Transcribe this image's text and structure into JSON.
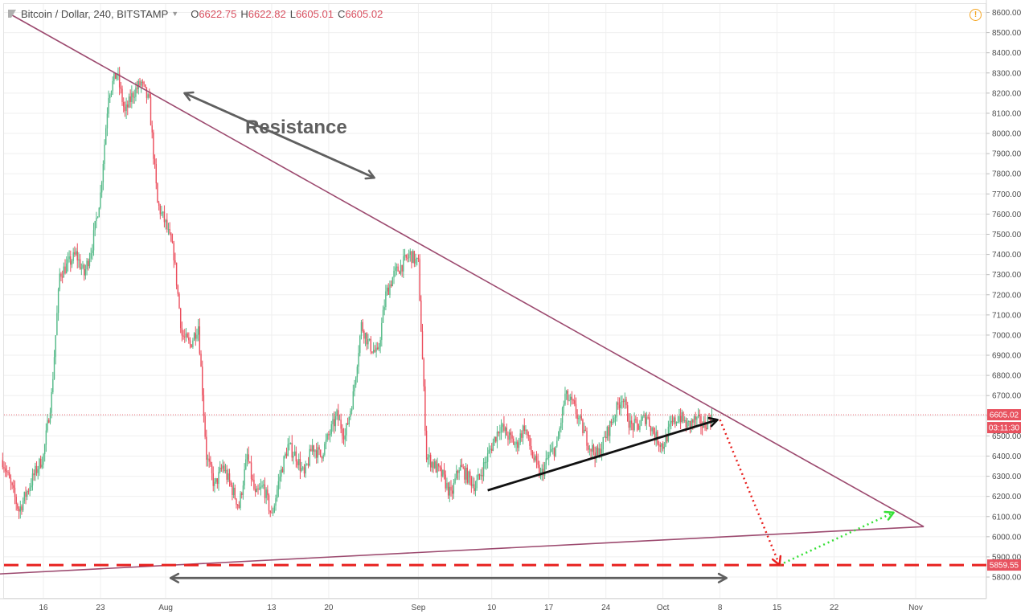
{
  "header": {
    "symbol": "Bitcoin / Dollar, 240, BITSTAMP",
    "o_label": "O",
    "o": "6622.75",
    "h_label": "H",
    "h": "6622.82",
    "l_label": "L",
    "l": "6605.01",
    "c_label": "C",
    "c": "6605.02",
    "alert_icon": "!"
  },
  "colors": {
    "up": "#53b987",
    "down": "#eb4d5c",
    "trend": "#9c4a6f",
    "support": "#e8201e",
    "arrow": "#5f5f5f",
    "price_tag": "#e8525f",
    "green_path": "#35e035"
  },
  "chart_data": {
    "type": "candlestick",
    "title": "",
    "ylim": [
      5760,
      8620
    ],
    "y_ticks": [
      "8600.00",
      "8500.00",
      "8400.00",
      "8300.00",
      "8200.00",
      "8100.00",
      "8000.00",
      "7900.00",
      "7800.00",
      "7700.00",
      "7600.00",
      "7500.00",
      "7400.00",
      "7300.00",
      "7200.00",
      "7100.00",
      "7000.00",
      "6900.00",
      "6800.00",
      "6700.00",
      "6600.00",
      "6500.00",
      "6400.00",
      "6300.00",
      "6200.00",
      "6100.00",
      "6000.00",
      "5900.00",
      "5800.00"
    ],
    "x_ticks": [
      "16",
      "23",
      "Aug",
      "13",
      "20",
      "Sep",
      "10",
      "17",
      "24",
      "Oct",
      "8",
      "15",
      "22",
      "Nov"
    ],
    "x_tick_day_index": [
      16,
      23,
      31,
      44,
      51,
      62,
      71,
      78,
      85,
      92,
      99,
      106,
      113,
      123
    ],
    "day_index_origin": "2018-07-00",
    "price_path": [
      [
        11,
        6380
      ],
      [
        13,
        6130
      ],
      [
        15,
        6320
      ],
      [
        16,
        6400
      ],
      [
        17,
        6700
      ],
      [
        18,
        7300
      ],
      [
        20,
        7400
      ],
      [
        21,
        7300
      ],
      [
        22,
        7450
      ],
      [
        23,
        7700
      ],
      [
        24,
        8200
      ],
      [
        25,
        8300
      ],
      [
        26,
        8100
      ],
      [
        27,
        8200
      ],
      [
        28,
        8250
      ],
      [
        29,
        8150
      ],
      [
        30,
        7650
      ],
      [
        31,
        7550
      ],
      [
        32,
        7400
      ],
      [
        33,
        7000
      ],
      [
        34,
        6950
      ],
      [
        35,
        7050
      ],
      [
        36,
        6400
      ],
      [
        37,
        6250
      ],
      [
        38,
        6350
      ],
      [
        40,
        6150
      ],
      [
        41,
        6400
      ],
      [
        42,
        6200
      ],
      [
        43,
        6250
      ],
      [
        44,
        6100
      ],
      [
        45,
        6300
      ],
      [
        46,
        6450
      ],
      [
        47,
        6400
      ],
      [
        48,
        6300
      ],
      [
        49,
        6450
      ],
      [
        50,
        6400
      ],
      [
        51,
        6500
      ],
      [
        52,
        6600
      ],
      [
        53,
        6500
      ],
      [
        54,
        6700
      ],
      [
        55,
        7050
      ],
      [
        56,
        6950
      ],
      [
        57,
        6900
      ],
      [
        58,
        7200
      ],
      [
        59,
        7300
      ],
      [
        60,
        7350
      ],
      [
        61,
        7400
      ],
      [
        62,
        7350
      ],
      [
        63,
        6400
      ],
      [
        64,
        6350
      ],
      [
        65,
        6300
      ],
      [
        66,
        6200
      ],
      [
        67,
        6350
      ],
      [
        68,
        6300
      ],
      [
        69,
        6250
      ],
      [
        70,
        6350
      ],
      [
        71,
        6450
      ],
      [
        72,
        6550
      ],
      [
        73,
        6500
      ],
      [
        74,
        6450
      ],
      [
        75,
        6550
      ],
      [
        76,
        6400
      ],
      [
        77,
        6300
      ],
      [
        78,
        6400
      ],
      [
        79,
        6450
      ],
      [
        80,
        6700
      ],
      [
        81,
        6650
      ],
      [
        82,
        6550
      ],
      [
        83,
        6450
      ],
      [
        84,
        6400
      ],
      [
        85,
        6500
      ],
      [
        86,
        6600
      ],
      [
        87,
        6700
      ],
      [
        88,
        6550
      ],
      [
        89,
        6550
      ],
      [
        90,
        6600
      ],
      [
        91,
        6500
      ],
      [
        92,
        6450
      ],
      [
        93,
        6550
      ],
      [
        94,
        6600
      ],
      [
        95,
        6550
      ],
      [
        96,
        6580
      ],
      [
        97,
        6550
      ],
      [
        98,
        6605
      ]
    ],
    "last_price": "6605.02",
    "countdown": "03:11:30",
    "support_level": "5859.55",
    "resistance_line": [
      [
        12,
        8590
      ],
      [
        124,
        6050
      ]
    ],
    "support_trendline": [
      [
        8,
        5810
      ],
      [
        124,
        6050
      ]
    ],
    "rising_trendline": [
      [
        70.5,
        6230
      ],
      [
        98.7,
        6580
      ]
    ],
    "projection_down": [
      [
        99,
        6580
      ],
      [
        106.3,
        5860
      ]
    ],
    "projection_up": [
      [
        106.3,
        5860
      ],
      [
        120.3,
        6120
      ]
    ],
    "annotations": [
      {
        "text": "Resistance",
        "x": 47,
        "y": 8000
      }
    ],
    "double_arrows": [
      {
        "from": [
          33.3,
          8200
        ],
        "to": [
          56.6,
          7780
        ]
      },
      {
        "from": [
          31.6,
          5795
        ],
        "to": [
          99.8,
          5795
        ]
      }
    ]
  }
}
